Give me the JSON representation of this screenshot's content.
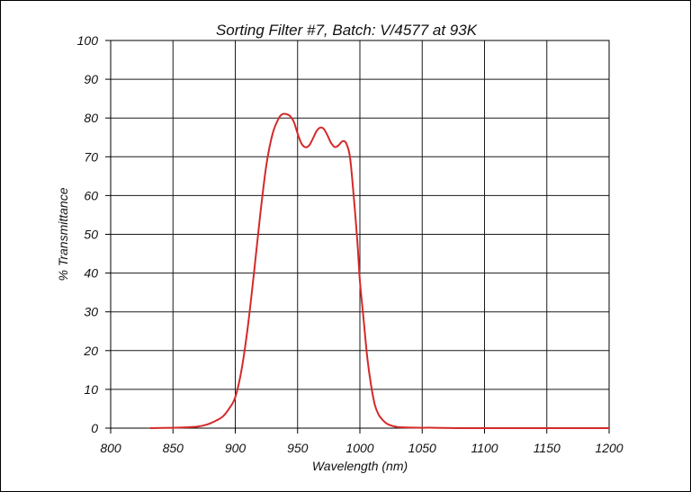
{
  "chart_data": {
    "type": "line",
    "title": "Sorting Filter #7, Batch: V/4577  at 93K",
    "xlabel": "Wavelength (nm)",
    "ylabel": "% Transmittance",
    "xlim": [
      800,
      1200
    ],
    "ylim": [
      0,
      100
    ],
    "xticks": [
      800,
      850,
      900,
      950,
      1000,
      1050,
      1100,
      1150,
      1200
    ],
    "yticks": [
      0,
      10,
      20,
      30,
      40,
      50,
      60,
      70,
      80,
      90,
      100
    ],
    "grid": true,
    "series": [
      {
        "color": "#d42a2a",
        "x": [
          832,
          850,
          860,
          870,
          878,
          885,
          890,
          895,
          900,
          905,
          910,
          915,
          920,
          925,
          930,
          935,
          938,
          941,
          944,
          947,
          950,
          953,
          956,
          959,
          962,
          965,
          968,
          971,
          974,
          977,
          980,
          983,
          986,
          989,
          992,
          995,
          998,
          1000,
          1003,
          1006,
          1009,
          1012,
          1015,
          1018,
          1021,
          1024,
          1027,
          1030,
          1035,
          1040,
          1050,
          1060,
          1080,
          1100,
          1150,
          1200
        ],
        "y": [
          0.0,
          0.1,
          0.2,
          0.4,
          1.0,
          2.0,
          3.0,
          5.0,
          8.0,
          15.0,
          26.0,
          40.0,
          55.0,
          68.0,
          76.0,
          80.0,
          81.0,
          81.0,
          80.5,
          79.0,
          76.0,
          73.5,
          72.5,
          72.8,
          74.5,
          76.5,
          77.5,
          77.2,
          75.5,
          73.5,
          72.5,
          73.0,
          74.0,
          73.5,
          70.0,
          60.0,
          48.0,
          38.0,
          28.0,
          18.0,
          11.0,
          6.0,
          3.5,
          2.2,
          1.3,
          0.8,
          0.5,
          0.3,
          0.2,
          0.15,
          0.1,
          0.1,
          0.0,
          0.0,
          0.0,
          0.0
        ]
      }
    ]
  }
}
